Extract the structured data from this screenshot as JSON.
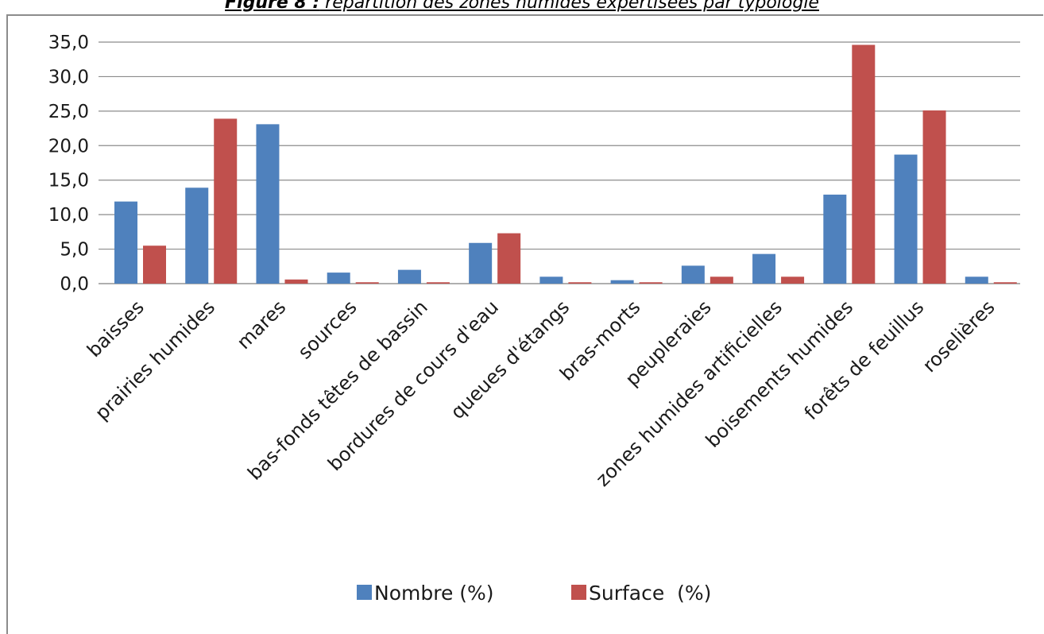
{
  "caption": {
    "lead": "Figure 8 :",
    "text": " répartition des zones humides expertisées par typologie"
  },
  "chart_data": {
    "type": "bar",
    "title": "",
    "xlabel": "",
    "ylabel": "",
    "ylim": [
      0,
      35
    ],
    "yticks": [
      "0,0",
      "5,0",
      "10,0",
      "15,0",
      "20,0",
      "25,0",
      "30,0",
      "35,0"
    ],
    "grid": true,
    "legend_position": "bottom",
    "categories": [
      "baisses",
      "prairies humides",
      "mares",
      "sources",
      "bas-fonds têtes de bassin",
      "bordures de cours d'eau",
      "queues d'étangs",
      "bras-morts",
      "peupleraies",
      "zones humides artificielles",
      "boisements humides",
      "forêts de feuillus",
      "roselières"
    ],
    "series": [
      {
        "name": "Nombre (%)",
        "color": "#4f81bd",
        "values": [
          11.9,
          13.9,
          23.1,
          1.6,
          2.0,
          5.9,
          1.0,
          0.5,
          2.6,
          4.3,
          12.9,
          18.7,
          1.0
        ]
      },
      {
        "name": "Surface  (%)",
        "color": "#c0504d",
        "values": [
          5.5,
          23.9,
          0.6,
          0.2,
          0.2,
          7.3,
          0.2,
          0.2,
          1.0,
          1.0,
          34.6,
          25.1,
          0.2
        ]
      }
    ]
  }
}
